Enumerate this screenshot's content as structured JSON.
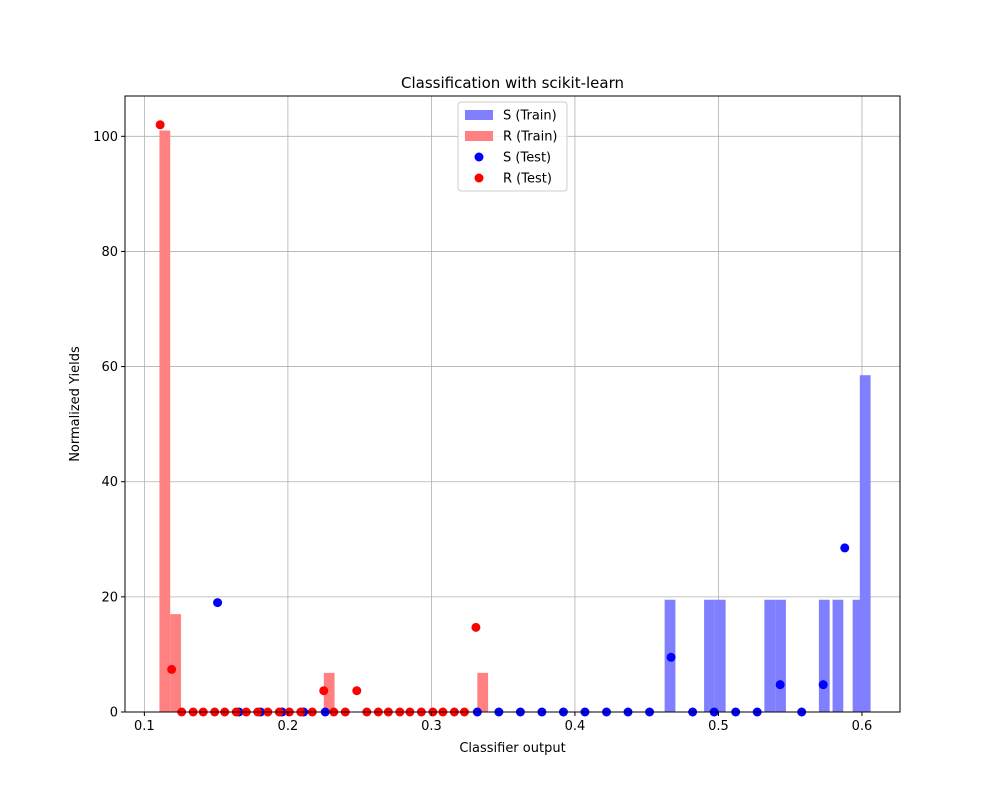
{
  "chart_data": {
    "type": "bar",
    "title": "Classification with scikit-learn",
    "xlabel": "Classifier output",
    "ylabel": "Normalized Yields",
    "xlim": [
      0.0865,
      0.6265
    ],
    "ylim": [
      0,
      107
    ],
    "x_ticks": [
      0.1,
      0.2,
      0.3,
      0.4,
      0.5,
      0.6
    ],
    "y_ticks": [
      0,
      20,
      40,
      60,
      80,
      100
    ],
    "grid": true,
    "legend_position": "top-center",
    "legend": [
      {
        "label": "S (Train)",
        "kind": "bar",
        "color": "#8080ff"
      },
      {
        "label": "R (Train)",
        "kind": "bar",
        "color": "#ff8080"
      },
      {
        "label": "S (Test)",
        "kind": "marker",
        "color": "#0000ff"
      },
      {
        "label": "R (Test)",
        "kind": "marker",
        "color": "#ff0000"
      }
    ],
    "bin_width": 0.0075,
    "series": [
      {
        "name": "S (Train)",
        "kind": "histogram",
        "color": "#8080ff",
        "bins": [
          {
            "left": 0.4625,
            "value": 19.5
          },
          {
            "left": 0.49,
            "value": 19.5
          },
          {
            "left": 0.4975,
            "value": 19.5
          },
          {
            "left": 0.532,
            "value": 19.5
          },
          {
            "left": 0.5395,
            "value": 19.5
          },
          {
            "left": 0.57,
            "value": 19.5
          },
          {
            "left": 0.5795,
            "value": 19.5
          },
          {
            "left": 0.5935,
            "value": 19.5
          },
          {
            "left": 0.5985,
            "value": 58.5
          }
        ]
      },
      {
        "name": "R (Train)",
        "kind": "histogram",
        "color": "#ff8080",
        "bins": [
          {
            "left": 0.1105,
            "value": 101
          },
          {
            "left": 0.118,
            "value": 17
          },
          {
            "left": 0.225,
            "value": 6.8
          },
          {
            "left": 0.332,
            "value": 6.8
          }
        ]
      },
      {
        "name": "S (Test)",
        "kind": "points",
        "color": "#0000ff",
        "points": [
          [
            0.151,
            19
          ],
          [
            0.166,
            0
          ],
          [
            0.181,
            0
          ],
          [
            0.196,
            0
          ],
          [
            0.211,
            0
          ],
          [
            0.226,
            0
          ],
          [
            0.332,
            0
          ],
          [
            0.347,
            0
          ],
          [
            0.362,
            0
          ],
          [
            0.377,
            0
          ],
          [
            0.392,
            0
          ],
          [
            0.407,
            0
          ],
          [
            0.422,
            0
          ],
          [
            0.437,
            0
          ],
          [
            0.452,
            0
          ],
          [
            0.467,
            9.5
          ],
          [
            0.482,
            0
          ],
          [
            0.497,
            0
          ],
          [
            0.512,
            0
          ],
          [
            0.527,
            0
          ],
          [
            0.543,
            4.75
          ],
          [
            0.558,
            0
          ],
          [
            0.573,
            4.75
          ],
          [
            0.588,
            28.5
          ]
        ]
      },
      {
        "name": "R (Test)",
        "kind": "points",
        "color": "#ff0000",
        "points": [
          [
            0.111,
            102
          ],
          [
            0.119,
            7.4
          ],
          [
            0.126,
            0
          ],
          [
            0.134,
            0
          ],
          [
            0.141,
            0
          ],
          [
            0.149,
            0
          ],
          [
            0.156,
            0
          ],
          [
            0.164,
            0
          ],
          [
            0.171,
            0
          ],
          [
            0.179,
            0
          ],
          [
            0.186,
            0
          ],
          [
            0.194,
            0
          ],
          [
            0.201,
            0
          ],
          [
            0.209,
            0
          ],
          [
            0.217,
            0
          ],
          [
            0.225,
            3.7
          ],
          [
            0.232,
            0
          ],
          [
            0.24,
            0
          ],
          [
            0.248,
            3.7
          ],
          [
            0.255,
            0
          ],
          [
            0.263,
            0
          ],
          [
            0.27,
            0
          ],
          [
            0.278,
            0
          ],
          [
            0.285,
            0
          ],
          [
            0.293,
            0
          ],
          [
            0.301,
            0
          ],
          [
            0.308,
            0
          ],
          [
            0.316,
            0
          ],
          [
            0.323,
            0
          ],
          [
            0.331,
            14.7
          ]
        ]
      }
    ]
  }
}
